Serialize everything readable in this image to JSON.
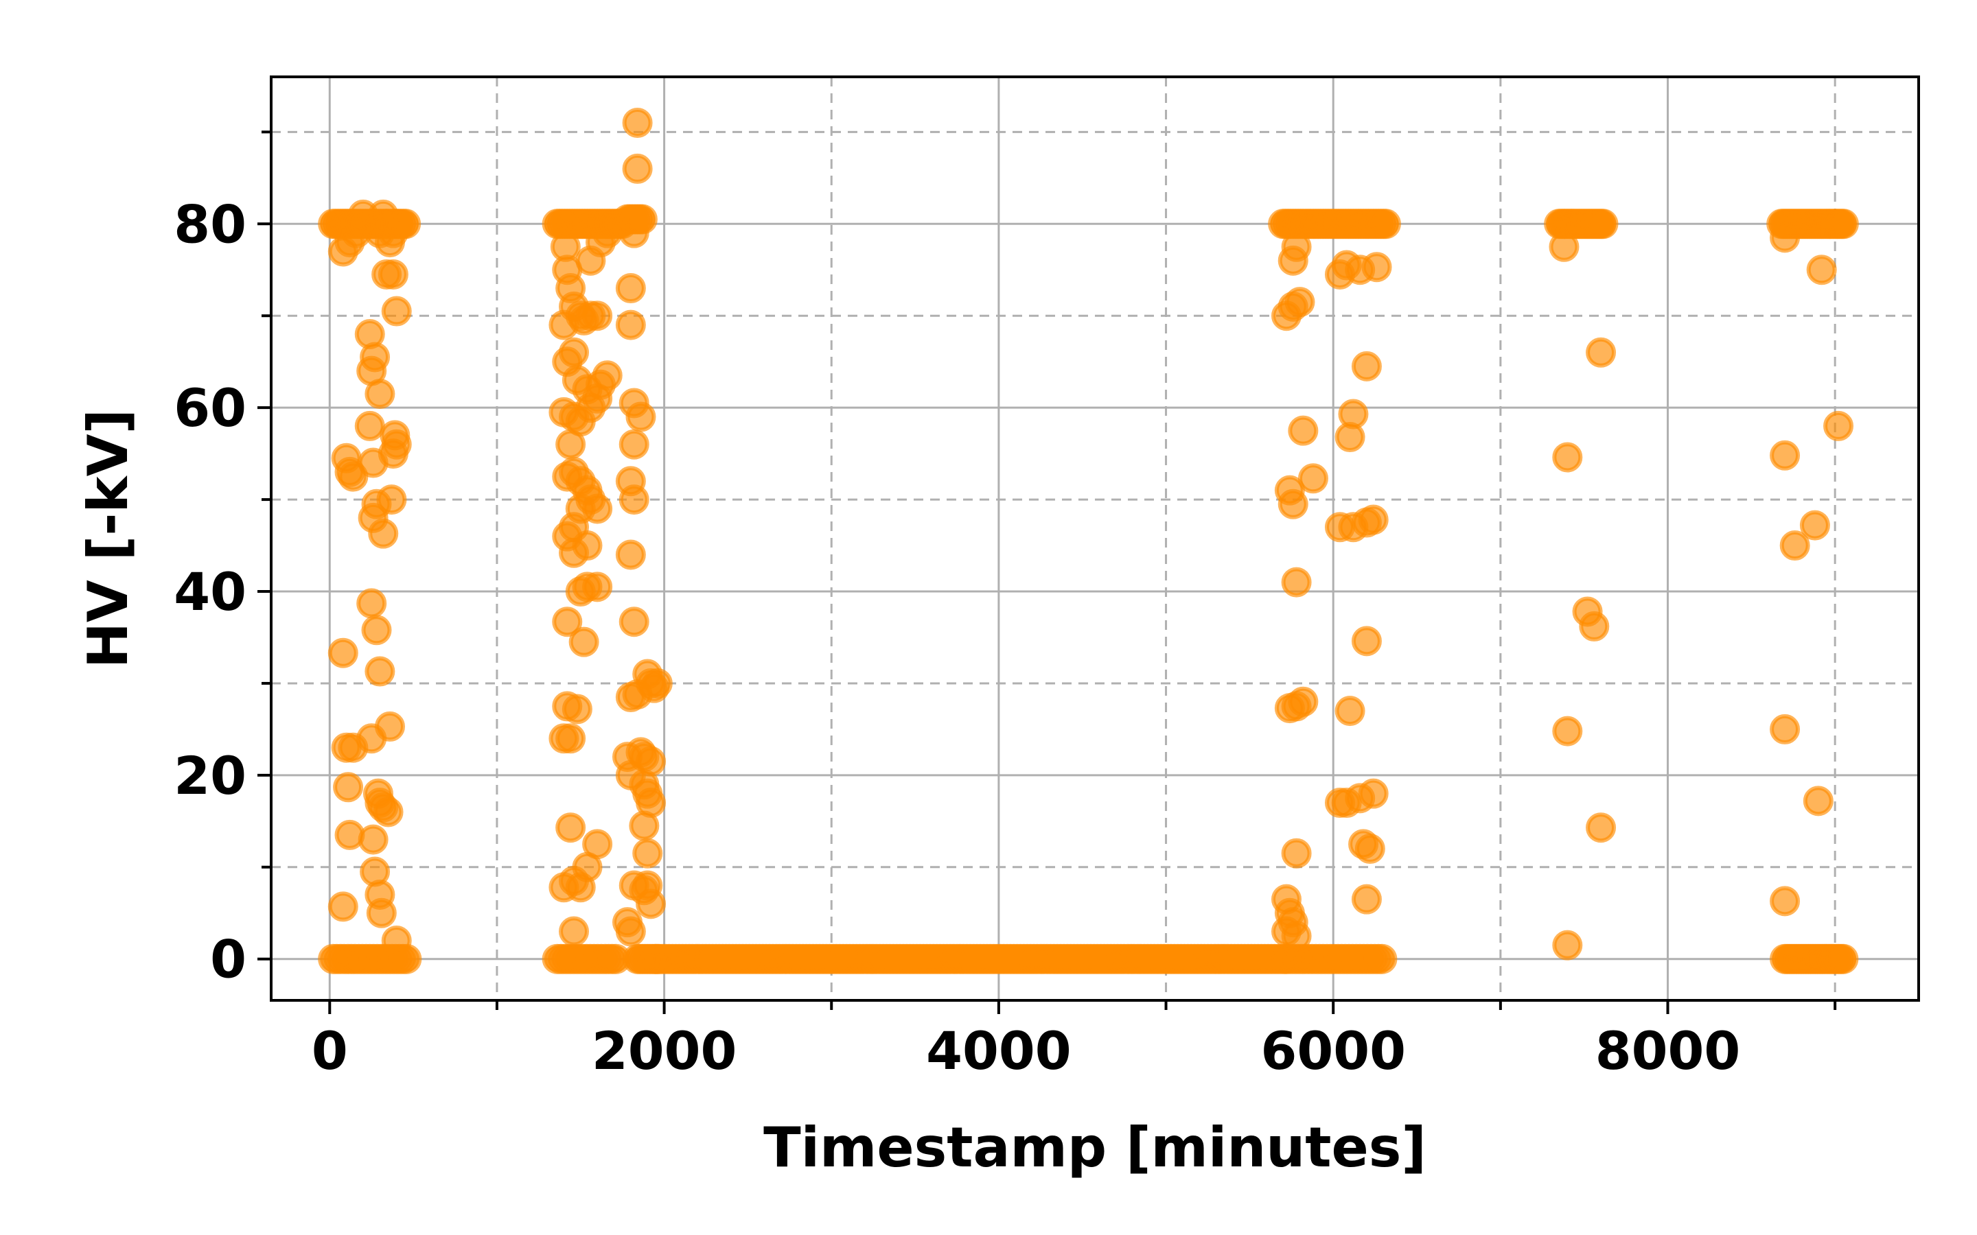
{
  "chart_data": {
    "type": "scatter",
    "title": "",
    "xlabel": "Timestamp [minutes]",
    "ylabel": "HV [-kV]",
    "xlim": [
      -350,
      9500
    ],
    "ylim": [
      -4.5,
      96
    ],
    "x_ticks": [
      0,
      2000,
      4000,
      6000,
      8000
    ],
    "x_tick_labels": [
      "0",
      "2000",
      "4000",
      "6000",
      "8000"
    ],
    "x_minor_ticks": [
      1000,
      3000,
      5000,
      7000,
      9000
    ],
    "y_ticks": [
      0,
      20,
      40,
      60,
      80
    ],
    "y_tick_labels": [
      "0",
      "20",
      "40",
      "60",
      "80"
    ],
    "y_minor_ticks": [
      10,
      30,
      50,
      70,
      90
    ],
    "grid": true,
    "legend": "none",
    "marker_color": "#ff8c00",
    "marker_alpha": 0.65,
    "baseline": {
      "x_start": 1950,
      "x_end": 5720,
      "step": 20,
      "y": 0
    },
    "clusters": [
      {
        "x_start": 20,
        "x_end": 460,
        "step": 15,
        "y": 80
      },
      {
        "x_start": 1360,
        "x_end": 1760,
        "step": 15,
        "y": 80
      },
      {
        "x_start": 1780,
        "x_end": 1870,
        "step": 15,
        "y": 80.5
      },
      {
        "x_start": 5700,
        "x_end": 6320,
        "step": 15,
        "y": 80
      },
      {
        "x_start": 7350,
        "x_end": 7620,
        "step": 12,
        "y": 80
      },
      {
        "x_start": 8680,
        "x_end": 9060,
        "step": 12,
        "y": 80
      },
      {
        "x_start": 20,
        "x_end": 460,
        "step": 22,
        "y": 0
      },
      {
        "x_start": 1360,
        "x_end": 1720,
        "step": 22,
        "y": 0
      },
      {
        "x_start": 1840,
        "x_end": 1960,
        "step": 15,
        "y": 0
      },
      {
        "x_start": 5720,
        "x_end": 6300,
        "step": 22,
        "y": 0
      },
      {
        "x_start": 8700,
        "x_end": 9060,
        "step": 14,
        "y": 0
      }
    ],
    "points": [
      [
        80,
        77
      ],
      [
        120,
        78
      ],
      [
        160,
        79
      ],
      [
        200,
        81
      ],
      [
        260,
        80
      ],
      [
        300,
        79
      ],
      [
        320,
        81
      ],
      [
        340,
        80
      ],
      [
        360,
        78
      ],
      [
        380,
        79
      ],
      [
        400,
        80
      ],
      [
        100,
        54.5
      ],
      [
        120,
        53
      ],
      [
        140,
        52.5
      ],
      [
        80,
        33.3
      ],
      [
        100,
        23
      ],
      [
        140,
        23
      ],
      [
        110,
        18.7
      ],
      [
        120,
        13.5
      ],
      [
        80,
        5.7
      ],
      [
        240,
        68
      ],
      [
        270,
        65.5
      ],
      [
        250,
        64
      ],
      [
        300,
        61.5
      ],
      [
        240,
        58
      ],
      [
        260,
        54
      ],
      [
        280,
        49.5
      ],
      [
        260,
        48
      ],
      [
        320,
        46.3
      ],
      [
        250,
        38.7
      ],
      [
        280,
        35.8
      ],
      [
        300,
        31.3
      ],
      [
        250,
        24
      ],
      [
        290,
        18
      ],
      [
        300,
        17
      ],
      [
        320,
        16.5
      ],
      [
        350,
        16
      ],
      [
        260,
        13
      ],
      [
        270,
        9.5
      ],
      [
        300,
        7
      ],
      [
        310,
        5
      ],
      [
        340,
        74.5
      ],
      [
        380,
        74.5
      ],
      [
        400,
        70.5
      ],
      [
        390,
        57
      ],
      [
        400,
        56
      ],
      [
        380,
        55
      ],
      [
        370,
        50
      ],
      [
        360,
        25.3
      ],
      [
        400,
        2
      ],
      [
        1410,
        77.5
      ],
      [
        1420,
        75
      ],
      [
        1440,
        73
      ],
      [
        1400,
        69
      ],
      [
        1460,
        71
      ],
      [
        1500,
        70
      ],
      [
        1520,
        69.5
      ],
      [
        1560,
        70
      ],
      [
        1600,
        70
      ],
      [
        1460,
        66
      ],
      [
        1420,
        65
      ],
      [
        1480,
        63
      ],
      [
        1540,
        62
      ],
      [
        1600,
        61
      ],
      [
        1400,
        59.5
      ],
      [
        1460,
        59
      ],
      [
        1500,
        58.5
      ],
      [
        1560,
        60
      ],
      [
        1620,
        62.5
      ],
      [
        1660,
        63.5
      ],
      [
        1440,
        56
      ],
      [
        1460,
        53
      ],
      [
        1420,
        52.5
      ],
      [
        1500,
        52
      ],
      [
        1540,
        51
      ],
      [
        1560,
        50
      ],
      [
        1600,
        49
      ],
      [
        1500,
        49
      ],
      [
        1460,
        47
      ],
      [
        1420,
        46
      ],
      [
        1460,
        44.2
      ],
      [
        1540,
        45
      ],
      [
        1500,
        40
      ],
      [
        1540,
        40.5
      ],
      [
        1600,
        40.5
      ],
      [
        1420,
        36.7
      ],
      [
        1520,
        34.5
      ],
      [
        1420,
        27.5
      ],
      [
        1480,
        27.2
      ],
      [
        1400,
        24
      ],
      [
        1440,
        24
      ],
      [
        1440,
        14.3
      ],
      [
        1600,
        12.5
      ],
      [
        1540,
        10
      ],
      [
        1400,
        7.8
      ],
      [
        1460,
        8.5
      ],
      [
        1500,
        7.8
      ],
      [
        1460,
        3
      ],
      [
        1560,
        76
      ],
      [
        1620,
        78
      ],
      [
        1660,
        79
      ],
      [
        1840,
        91
      ],
      [
        1840,
        86
      ],
      [
        1820,
        79
      ],
      [
        1800,
        73
      ],
      [
        1800,
        69
      ],
      [
        1820,
        60.5
      ],
      [
        1860,
        59
      ],
      [
        1820,
        56
      ],
      [
        1800,
        52
      ],
      [
        1820,
        50
      ],
      [
        1800,
        44
      ],
      [
        1820,
        36.7
      ],
      [
        1800,
        28.5
      ],
      [
        1840,
        28.8
      ],
      [
        1780,
        22
      ],
      [
        1800,
        20
      ],
      [
        1860,
        22.5
      ],
      [
        1880,
        22
      ],
      [
        1920,
        21.5
      ],
      [
        1880,
        19
      ],
      [
        1900,
        18
      ],
      [
        1920,
        17
      ],
      [
        1880,
        14.5
      ],
      [
        1900,
        11.5
      ],
      [
        1820,
        8
      ],
      [
        1880,
        7.5
      ],
      [
        1900,
        8
      ],
      [
        1920,
        6
      ],
      [
        1780,
        4
      ],
      [
        1800,
        3
      ],
      [
        1900,
        31
      ],
      [
        1920,
        30
      ],
      [
        1960,
        30
      ],
      [
        1940,
        29.5
      ],
      [
        5720,
        70
      ],
      [
        5760,
        71
      ],
      [
        5800,
        71.5
      ],
      [
        5780,
        77.5
      ],
      [
        5760,
        76
      ],
      [
        5820,
        57.5
      ],
      [
        5880,
        52.3
      ],
      [
        5740,
        51
      ],
      [
        5760,
        49.5
      ],
      [
        5780,
        41
      ],
      [
        5740,
        27.3
      ],
      [
        5780,
        27.5
      ],
      [
        5820,
        28
      ],
      [
        5780,
        11.5
      ],
      [
        5720,
        6.5
      ],
      [
        5740,
        5
      ],
      [
        5760,
        4
      ],
      [
        5720,
        3
      ],
      [
        5780,
        2.5
      ],
      [
        6040,
        74.5
      ],
      [
        6080,
        75.5
      ],
      [
        6160,
        75
      ],
      [
        6260,
        75.3
      ],
      [
        6120,
        59.3
      ],
      [
        6100,
        56.8
      ],
      [
        6200,
        64.5
      ],
      [
        6040,
        47
      ],
      [
        6120,
        47
      ],
      [
        6200,
        47.5
      ],
      [
        6240,
        47.8
      ],
      [
        6200,
        34.6
      ],
      [
        6100,
        27
      ],
      [
        6040,
        17
      ],
      [
        6080,
        17
      ],
      [
        6160,
        17.5
      ],
      [
        6240,
        18
      ],
      [
        6180,
        12.5
      ],
      [
        6220,
        12
      ],
      [
        6200,
        6.5
      ],
      [
        7380,
        77.5
      ],
      [
        7400,
        54.6
      ],
      [
        7400,
        24.8
      ],
      [
        7520,
        37.8
      ],
      [
        7560,
        36.2
      ],
      [
        7600,
        66
      ],
      [
        7600,
        14.3
      ],
      [
        7400,
        1.5
      ],
      [
        8700,
        78.5
      ],
      [
        8700,
        54.8
      ],
      [
        8700,
        25
      ],
      [
        8700,
        6.3
      ],
      [
        8760,
        45
      ],
      [
        8880,
        47.2
      ],
      [
        8920,
        75
      ],
      [
        8900,
        17.2
      ],
      [
        9020,
        58
      ]
    ]
  }
}
